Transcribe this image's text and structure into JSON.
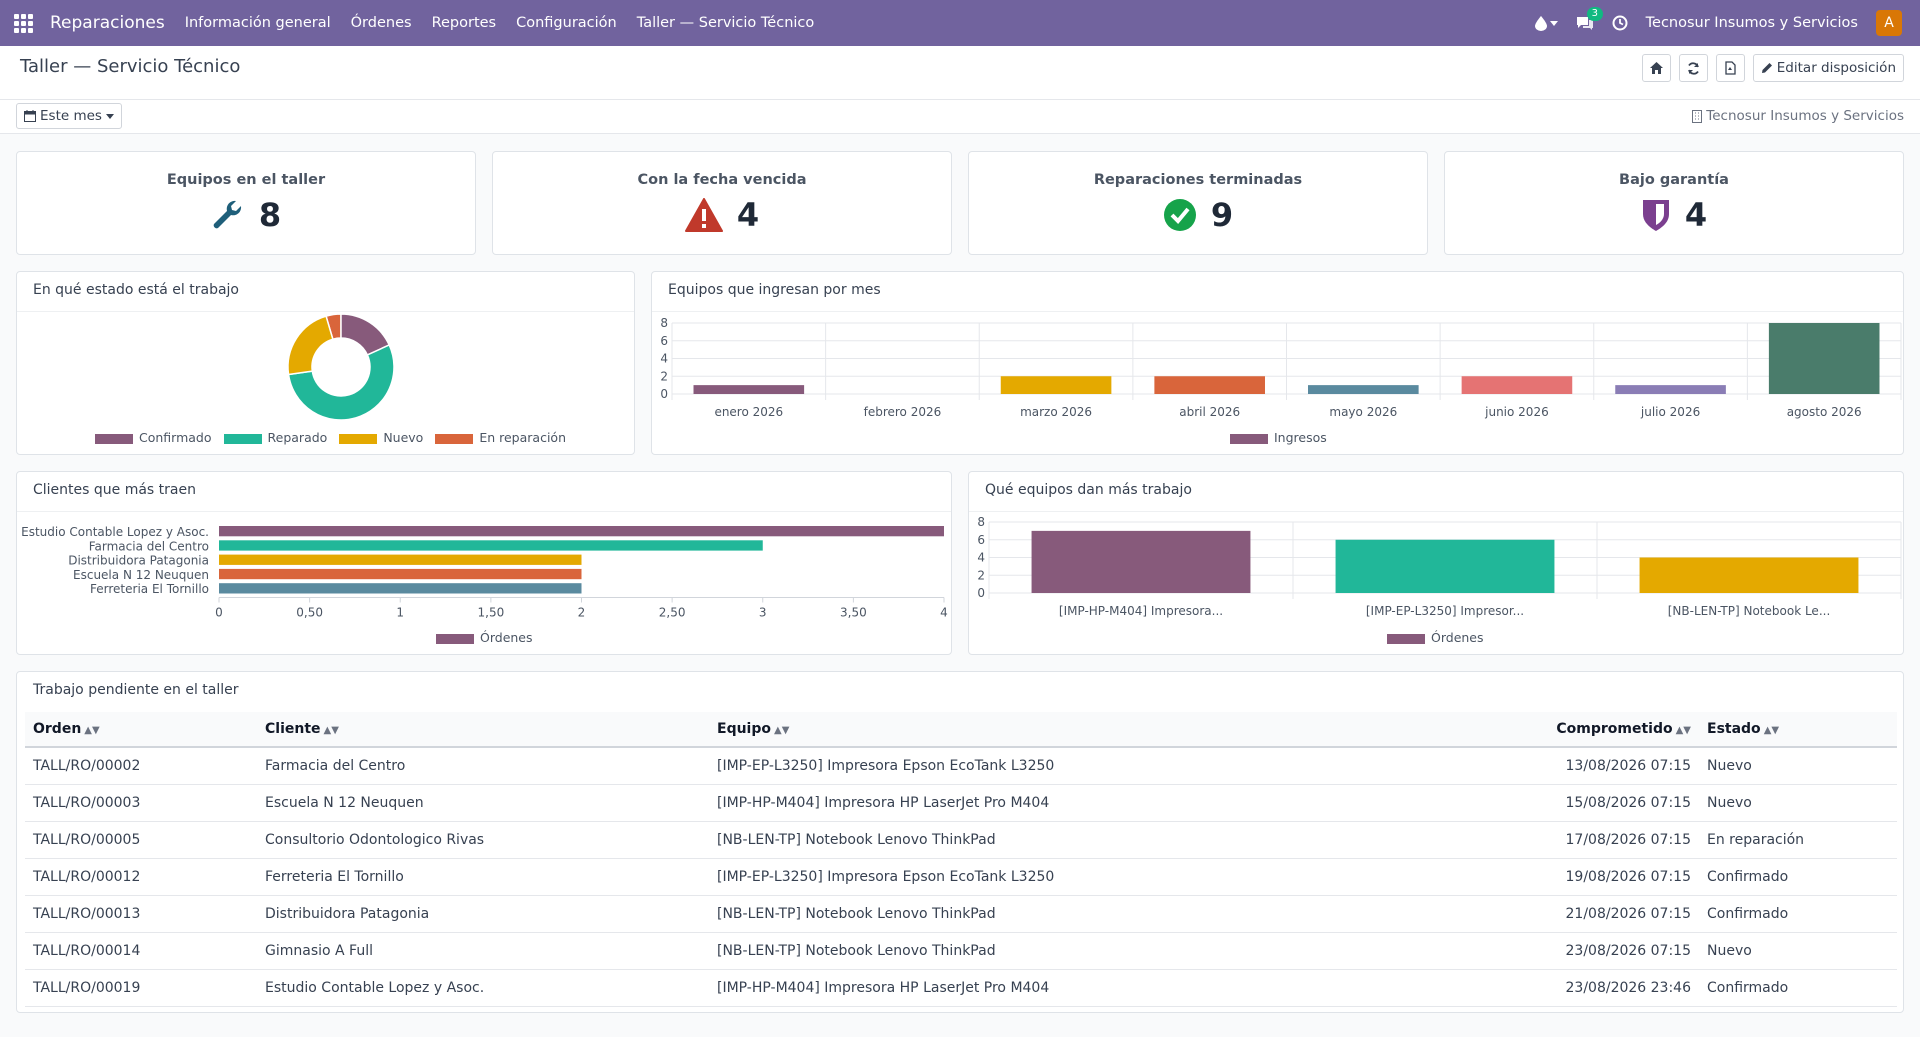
{
  "navbar": {
    "brand": "Reparaciones",
    "menu": [
      "Información general",
      "Órdenes",
      "Reportes",
      "Configuración",
      "Taller — Servicio Técnico"
    ],
    "messages_badge": "3",
    "company": "Tecnosur Insumos y Servicios",
    "avatar_letter": "A"
  },
  "control": {
    "title": "Taller — Servicio Técnico",
    "edit_label": "Editar disposición",
    "period_label": "Este mes",
    "company_filter": "Tecnosur Insumos y Servicios"
  },
  "kpis": [
    {
      "title": "Equipos en el taller",
      "value": "8",
      "icon": "wrench-icon",
      "color": "#1f5f7a"
    },
    {
      "title": "Con la fecha vencida",
      "value": "4",
      "icon": "warning-icon",
      "color": "#c0392b"
    },
    {
      "title": "Reparaciones terminadas",
      "value": "9",
      "icon": "check-circle-icon",
      "color": "#16a34a"
    },
    {
      "title": "Bajo garantía",
      "value": "4",
      "icon": "shield-icon",
      "color": "#7b3f8f"
    }
  ],
  "panels": {
    "status_title": "En qué estado está el trabajo",
    "monthly_title": "Equipos que ingresan por mes",
    "clients_title": "Clientes que más traen",
    "equipment_title": "Qué equipos dan más trabajo",
    "pending_title": "Trabajo pendiente en el taller"
  },
  "chart_data": [
    {
      "type": "pie",
      "categories": [
        "Confirmado",
        "Reparado",
        "Nuevo",
        "En reparación"
      ],
      "values": [
        4,
        12,
        5,
        1
      ],
      "colors": [
        "#875a7b",
        "#21b799",
        "#e4a900",
        "#d9653b"
      ],
      "legend": "bottom"
    },
    {
      "type": "bar",
      "categories": [
        "enero 2026",
        "febrero 2026",
        "marzo 2026",
        "abril 2026",
        "mayo 2026",
        "junio 2026",
        "julio 2026",
        "agosto 2026"
      ],
      "series": [
        {
          "name": "Ingresos",
          "values": [
            1,
            0,
            2,
            2,
            1,
            2,
            1,
            8
          ]
        }
      ],
      "colors": [
        "#875a7b",
        "#21b799",
        "#e4a900",
        "#d9653b",
        "#5a8a9f",
        "#e57373",
        "#8a7db5",
        "#4a7c6b"
      ],
      "yticks": [
        "0",
        "2",
        "4",
        "6",
        "8"
      ],
      "ylim": [
        0,
        8
      ],
      "legend": "bottom",
      "grid": true
    },
    {
      "type": "bar",
      "orientation": "horizontal",
      "categories": [
        "Estudio Contable Lopez y Asoc.",
        "Farmacia del Centro",
        "Distribuidora Patagonia",
        "Escuela N 12 Neuquen",
        "Ferreteria El Tornillo"
      ],
      "series": [
        {
          "name": "Órdenes",
          "values": [
            4,
            3,
            2,
            2,
            2
          ]
        }
      ],
      "colors": [
        "#875a7b",
        "#21b799",
        "#e4a900",
        "#d9653b",
        "#5a8a9f"
      ],
      "xticks": [
        "0",
        "0,50",
        "1",
        "1,50",
        "2",
        "2,50",
        "3",
        "3,50",
        "4"
      ],
      "xlim": [
        0,
        4
      ],
      "legend": "bottom"
    },
    {
      "type": "bar",
      "categories": [
        "[IMP-HP-M404] Impresora...",
        "[IMP-EP-L3250] Impresor...",
        "[NB-LEN-TP] Notebook Le..."
      ],
      "series": [
        {
          "name": "Órdenes",
          "values": [
            7,
            6,
            4
          ]
        }
      ],
      "colors": [
        "#875a7b",
        "#21b799",
        "#e4a900"
      ],
      "yticks": [
        "0",
        "2",
        "4",
        "6",
        "8"
      ],
      "ylim": [
        0,
        8
      ],
      "legend": "bottom",
      "grid": true
    }
  ],
  "table": {
    "headers": [
      "Orden",
      "Cliente",
      "Equipo",
      "Comprometido",
      "Estado"
    ],
    "rows": [
      [
        "TALL/RO/00002",
        "Farmacia del Centro",
        "[IMP-EP-L3250] Impresora Epson EcoTank L3250",
        "13/08/2026 07:15",
        "Nuevo"
      ],
      [
        "TALL/RO/00003",
        "Escuela N 12 Neuquen",
        "[IMP-HP-M404] Impresora HP LaserJet Pro M404",
        "15/08/2026 07:15",
        "Nuevo"
      ],
      [
        "TALL/RO/00005",
        "Consultorio Odontologico Rivas",
        "[NB-LEN-TP] Notebook Lenovo ThinkPad",
        "17/08/2026 07:15",
        "En reparación"
      ],
      [
        "TALL/RO/00012",
        "Ferreteria El Tornillo",
        "[IMP-EP-L3250] Impresora Epson EcoTank L3250",
        "19/08/2026 07:15",
        "Confirmado"
      ],
      [
        "TALL/RO/00013",
        "Distribuidora Patagonia",
        "[NB-LEN-TP] Notebook Lenovo ThinkPad",
        "21/08/2026 07:15",
        "Confirmado"
      ],
      [
        "TALL/RO/00014",
        "Gimnasio A Full",
        "[NB-LEN-TP] Notebook Lenovo ThinkPad",
        "23/08/2026 07:15",
        "Nuevo"
      ],
      [
        "TALL/RO/00019",
        "Estudio Contable Lopez y Asoc.",
        "[IMP-HP-M404] Impresora HP LaserJet Pro M404",
        "23/08/2026 23:46",
        "Confirmado"
      ]
    ]
  }
}
